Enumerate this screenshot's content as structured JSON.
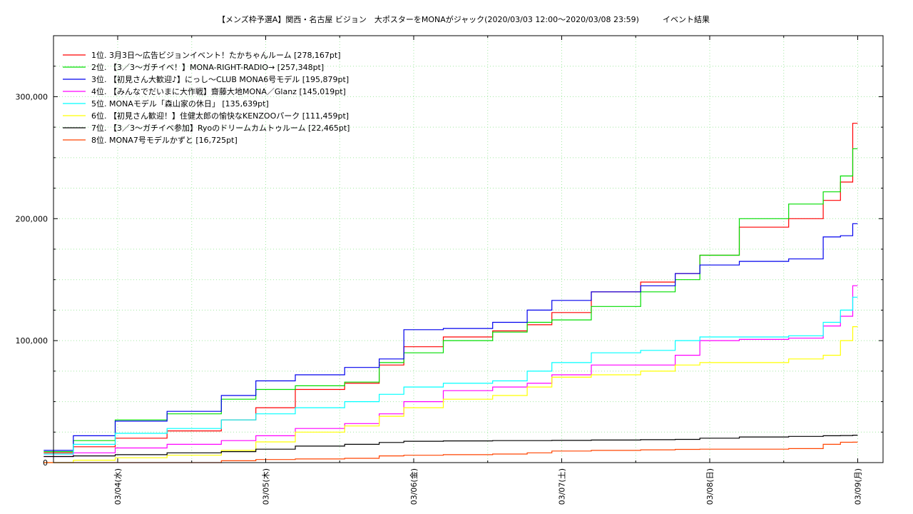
{
  "chart_data": {
    "type": "line",
    "title": "【メンズ枠予選A】関西・名古屋 ビジョン　大ポスターをMONAがジャック(2020/03/03 12:00〜2020/03/08 23:59)　　　イベント結果",
    "xlabel": "",
    "ylabel": "",
    "x_ticks": [
      "03/04(水)",
      "03/05(木)",
      "03/06(金)",
      "03/07(土)",
      "03/08(日)",
      "03/09(月)"
    ],
    "xlim": [
      "03/03 12:00",
      "03/09 01:00"
    ],
    "ylim": [
      0,
      350000
    ],
    "y_ticks": [
      "0",
      "100,000",
      "200,000",
      "300,000"
    ],
    "y_tick_values": [
      0,
      100000,
      200000,
      300000
    ],
    "grid": true,
    "legend_position": "top-left",
    "series": [
      {
        "name": "1位. 3月3日〜広告ビジョンイベント！たかちゃんルーム [278,167pt]",
        "color": "#ff0000",
        "x": [
          "03/03 12:00",
          "03/03 20:00",
          "03/04 02:00",
          "03/04 12:00",
          "03/04 20:00",
          "03/05 00:00",
          "03/05 08:00",
          "03/05 16:00",
          "03/05 20:00",
          "03/06 00:00",
          "03/06 08:00",
          "03/06 16:00",
          "03/06 20:00",
          "03/07 00:00",
          "03/07 08:00",
          "03/07 16:00",
          "03/07 20:00",
          "03/08 00:00",
          "03/08 08:00",
          "03/08 16:00",
          "03/08 20:00",
          "03/08 22:00",
          "03/08 23:59"
        ],
        "y": [
          8000,
          13000,
          20000,
          26000,
          35000,
          45000,
          60000,
          65000,
          80000,
          95000,
          103000,
          108000,
          113000,
          123000,
          140000,
          148000,
          155000,
          170000,
          193000,
          200000,
          215000,
          230000,
          278167
        ]
      },
      {
        "name": "2位. 【3／3〜ガチイベ！】MONA-RIGHT-RADIO→ [257,348pt]",
        "color": "#00dd00",
        "x": [
          "03/03 12:00",
          "03/03 20:00",
          "03/04 02:00",
          "03/04 12:00",
          "03/04 20:00",
          "03/05 00:00",
          "03/05 08:00",
          "03/05 16:00",
          "03/05 20:00",
          "03/06 00:00",
          "03/06 08:00",
          "03/06 16:00",
          "03/06 20:00",
          "03/07 00:00",
          "03/07 08:00",
          "03/07 16:00",
          "03/07 20:00",
          "03/08 00:00",
          "03/08 08:00",
          "03/08 16:00",
          "03/08 20:00",
          "03/08 22:00",
          "03/08 23:59"
        ],
        "y": [
          9000,
          18000,
          35000,
          40000,
          52000,
          60000,
          63000,
          66000,
          82000,
          90000,
          100000,
          107000,
          115000,
          117000,
          128000,
          140000,
          150000,
          170000,
          200000,
          212000,
          222000,
          235000,
          257348
        ]
      },
      {
        "name": "3位. 【初見さん大歓迎♪】にっし〜CLUB MONA6号モデル [195,879pt]",
        "color": "#0000ee",
        "x": [
          "03/03 12:00",
          "03/03 20:00",
          "03/04 02:00",
          "03/04 12:00",
          "03/04 20:00",
          "03/05 00:00",
          "03/05 08:00",
          "03/05 16:00",
          "03/05 20:00",
          "03/06 00:00",
          "03/06 08:00",
          "03/06 16:00",
          "03/06 20:00",
          "03/07 00:00",
          "03/07 08:00",
          "03/07 16:00",
          "03/07 20:00",
          "03/08 00:00",
          "03/08 08:00",
          "03/08 16:00",
          "03/08 20:00",
          "03/08 22:00",
          "03/08 23:59"
        ],
        "y": [
          10000,
          22000,
          34000,
          42000,
          55000,
          67000,
          72000,
          78000,
          85000,
          109000,
          110000,
          115000,
          125000,
          133000,
          140000,
          145000,
          155000,
          162000,
          165000,
          167000,
          185000,
          186000,
          195879
        ]
      },
      {
        "name": "4位. 【みんなでだいまに大作戦】齋藤大地MONA／Glanz [145,019pt]",
        "color": "#ff00ff",
        "x": [
          "03/03 12:00",
          "03/03 20:00",
          "03/04 02:00",
          "03/04 12:00",
          "03/04 20:00",
          "03/05 00:00",
          "03/05 08:00",
          "03/05 16:00",
          "03/05 20:00",
          "03/06 00:00",
          "03/06 08:00",
          "03/06 16:00",
          "03/06 20:00",
          "03/07 00:00",
          "03/07 08:00",
          "03/07 16:00",
          "03/07 20:00",
          "03/08 00:00",
          "03/08 08:00",
          "03/08 16:00",
          "03/08 20:00",
          "03/08 22:00",
          "03/08 23:59"
        ],
        "y": [
          5000,
          8000,
          12000,
          15000,
          18000,
          22000,
          28000,
          32000,
          40000,
          50000,
          59000,
          62000,
          65000,
          72000,
          80000,
          80000,
          88000,
          100000,
          101000,
          102000,
          112000,
          120000,
          145019
        ]
      },
      {
        "name": "5位. MONAモデル「森山家の休日」 [135,639pt]",
        "color": "#00ffff",
        "x": [
          "03/03 12:00",
          "03/03 20:00",
          "03/04 02:00",
          "03/04 12:00",
          "03/04 20:00",
          "03/05 00:00",
          "03/05 08:00",
          "03/05 16:00",
          "03/05 20:00",
          "03/06 00:00",
          "03/06 08:00",
          "03/06 16:00",
          "03/06 20:00",
          "03/07 00:00",
          "03/07 08:00",
          "03/07 16:00",
          "03/07 20:00",
          "03/08 00:00",
          "03/08 08:00",
          "03/08 16:00",
          "03/08 20:00",
          "03/08 22:00",
          "03/08 23:59"
        ],
        "y": [
          7000,
          15000,
          24000,
          28000,
          35000,
          40000,
          45000,
          50000,
          56000,
          62000,
          65000,
          67000,
          75000,
          82000,
          90000,
          92000,
          100000,
          103000,
          103000,
          104000,
          115000,
          125000,
          135639
        ]
      },
      {
        "name": "6位. 【初見さん歓迎！】住健太郎の愉快なKENZOOパーク [111,459pt]",
        "color": "#ffff00",
        "x": [
          "03/03 12:00",
          "03/03 20:00",
          "03/04 02:00",
          "03/04 12:00",
          "03/04 20:00",
          "03/05 00:00",
          "03/05 08:00",
          "03/05 16:00",
          "03/05 20:00",
          "03/06 00:00",
          "03/06 08:00",
          "03/06 16:00",
          "03/06 20:00",
          "03/07 00:00",
          "03/07 08:00",
          "03/07 16:00",
          "03/07 20:00",
          "03/08 00:00",
          "03/08 08:00",
          "03/08 16:00",
          "03/08 20:00",
          "03/08 22:00",
          "03/08 23:59"
        ],
        "y": [
          0,
          2000,
          4000,
          6000,
          10000,
          17000,
          25000,
          30000,
          38000,
          45000,
          52000,
          55000,
          62000,
          70000,
          72000,
          75000,
          80000,
          82000,
          82000,
          85000,
          88000,
          100000,
          111459
        ]
      },
      {
        "name": "7位. 【3／3〜ガチイベ参加】Ryoのドリームカムトゥルーム [22,465pt]",
        "color": "#000000",
        "x": [
          "03/03 12:00",
          "03/03 20:00",
          "03/04 02:00",
          "03/04 12:00",
          "03/04 20:00",
          "03/05 00:00",
          "03/05 08:00",
          "03/05 16:00",
          "03/05 20:00",
          "03/06 00:00",
          "03/06 08:00",
          "03/06 16:00",
          "03/06 20:00",
          "03/07 00:00",
          "03/07 08:00",
          "03/07 16:00",
          "03/07 20:00",
          "03/08 00:00",
          "03/08 08:00",
          "03/08 16:00",
          "03/08 20:00",
          "03/08 22:00",
          "03/08 23:59"
        ],
        "y": [
          5000,
          5500,
          6500,
          8000,
          9000,
          11000,
          13500,
          15000,
          16500,
          17500,
          17800,
          18000,
          18000,
          18200,
          18500,
          18800,
          19000,
          20000,
          21000,
          21500,
          22000,
          22200,
          22465
        ]
      },
      {
        "name": "8位. MONA7号モデルかずと [16,725pt]",
        "color": "#ff4400",
        "x": [
          "03/03 12:00",
          "03/03 20:00",
          "03/04 02:00",
          "03/04 12:00",
          "03/04 20:00",
          "03/05 00:00",
          "03/05 08:00",
          "03/05 16:00",
          "03/05 20:00",
          "03/06 00:00",
          "03/06 08:00",
          "03/06 16:00",
          "03/06 20:00",
          "03/07 00:00",
          "03/07 08:00",
          "03/07 16:00",
          "03/07 20:00",
          "03/08 00:00",
          "03/08 08:00",
          "03/08 16:00",
          "03/08 20:00",
          "03/08 22:00",
          "03/08 23:59"
        ],
        "y": [
          0,
          0,
          0,
          0,
          1500,
          2500,
          3000,
          3500,
          5500,
          6000,
          6500,
          7000,
          8000,
          9500,
          10000,
          10500,
          10800,
          11000,
          11000,
          11500,
          15000,
          16700,
          16725
        ]
      }
    ]
  }
}
